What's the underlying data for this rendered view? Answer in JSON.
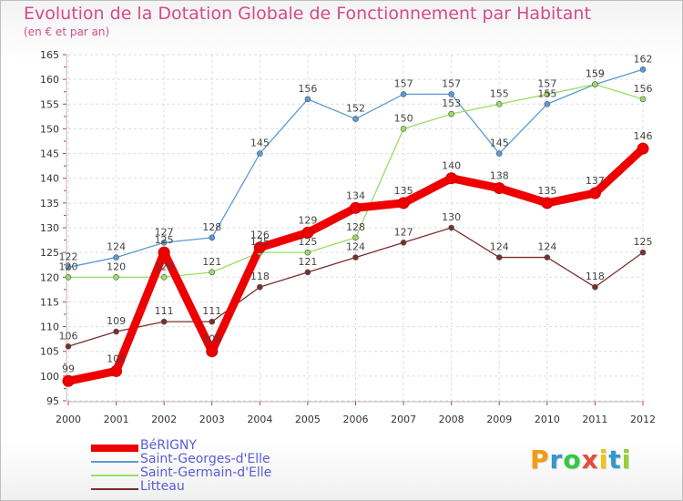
{
  "chart_data": {
    "type": "line",
    "title": "Evolution de la Dotation Globale de Fonctionnement par Habitant",
    "subtitle": "(en € et par an)",
    "x": [
      2000,
      2001,
      2002,
      2003,
      2004,
      2005,
      2006,
      2007,
      2008,
      2009,
      2010,
      2011,
      2012
    ],
    "xticks": [
      "2000",
      "2001",
      "2002",
      "2003",
      "2004",
      "2005",
      "2006",
      "2007",
      "2008",
      "2009",
      "2010",
      "2011",
      "2012"
    ],
    "ylim": [
      95,
      165
    ],
    "yticks": [
      95,
      100,
      105,
      110,
      115,
      120,
      125,
      130,
      135,
      140,
      145,
      150,
      155,
      160,
      165
    ],
    "grid": true,
    "legend_position": "bottom-left",
    "series": [
      {
        "name": "BéRIGNY",
        "color": "#ee0000",
        "values": [
          99,
          101,
          125,
          105,
          126,
          129,
          134,
          135,
          140,
          138,
          135,
          137,
          146
        ],
        "labels": [
          "99",
          "101",
          "125",
          "105",
          "126",
          "129",
          "134",
          "135",
          "140",
          "138",
          "135",
          "137",
          "146"
        ]
      },
      {
        "name": "Saint-Georges-d'Elle",
        "color": "#5b9bd5",
        "values": [
          122,
          124,
          127,
          128,
          145,
          156,
          152,
          157,
          157,
          145,
          155,
          159,
          162
        ],
        "labels": [
          "122",
          "124",
          "127",
          "128",
          "145",
          "156",
          "152",
          "157",
          "157",
          "145",
          "155",
          "159",
          "162"
        ]
      },
      {
        "name": "Saint-Germain-d'Elle",
        "color": "#99dd66",
        "values": [
          120,
          120,
          120,
          121,
          125,
          125,
          128,
          150,
          153,
          155,
          157,
          159,
          156
        ],
        "labels": [
          "120",
          "120",
          "120",
          "121",
          "125",
          "125",
          "128",
          "150",
          "153",
          "155",
          "157",
          "159",
          "156"
        ]
      },
      {
        "name": "Litteau",
        "color": "#7a2e2e",
        "values": [
          106,
          109,
          111,
          111,
          118,
          121,
          124,
          127,
          130,
          124,
          124,
          118,
          125
        ],
        "labels": [
          "106",
          "109",
          "111",
          "111",
          "118",
          "121",
          "124",
          "127",
          "130",
          "124",
          "124",
          "118",
          "125"
        ]
      }
    ]
  },
  "brand": {
    "letters": [
      "P",
      "r",
      "o",
      "x",
      "i",
      "t",
      "i"
    ],
    "colors": [
      "#f39c12",
      "#3399cc",
      "#2ecc40",
      "#e74c3c",
      "#f1c40f",
      "#3399cc",
      "#9acd32"
    ]
  }
}
